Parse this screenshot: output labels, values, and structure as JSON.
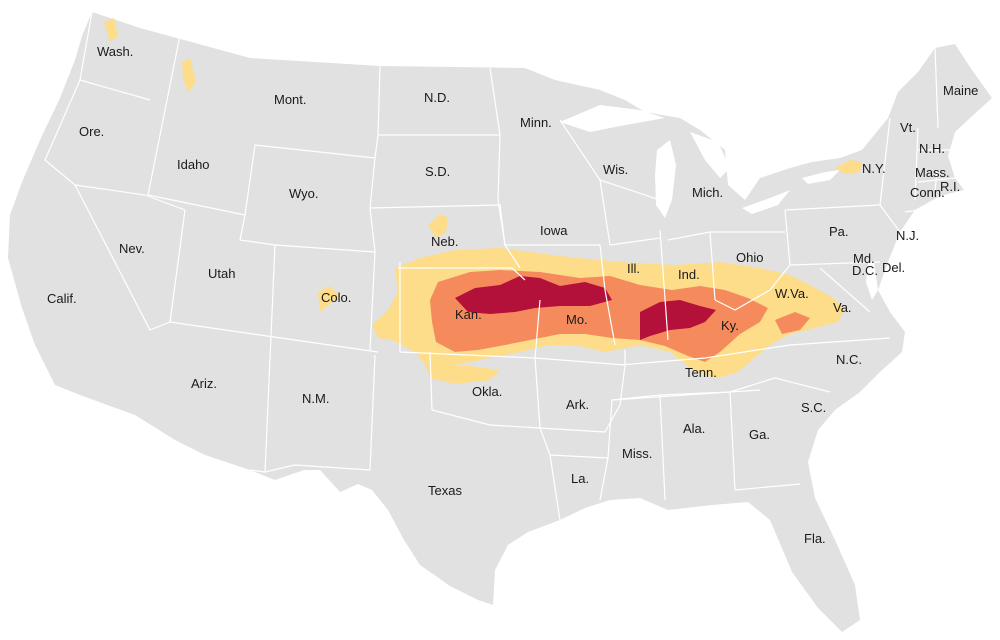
{
  "colors": {
    "land": "#e1e1e1",
    "borders": "#ffffff",
    "level_1": "#fddd8a",
    "level_2": "#f58b5c",
    "level_3": "#b3103a"
  },
  "labels": {
    "wa": "Wash.",
    "or": "Ore.",
    "ca": "Calif.",
    "id": "Idaho",
    "nv": "Nev.",
    "mt": "Mont.",
    "wy": "Wyo.",
    "ut": "Utah",
    "az": "Ariz.",
    "co": "Colo.",
    "nm": "N.M.",
    "nd": "N.D.",
    "sd": "S.D.",
    "ne": "Neb.",
    "ks": "Kan.",
    "ok": "Okla.",
    "tx": "Texas",
    "mn": "Minn.",
    "ia": "Iowa",
    "mo": "Mo.",
    "ar": "Ark.",
    "la": "La.",
    "wi": "Wis.",
    "il": "Ill.",
    "mi": "Mich.",
    "in": "Ind.",
    "oh": "Ohio",
    "ky": "Ky.",
    "tn": "Tenn.",
    "ms": "Miss.",
    "al": "Ala.",
    "ga": "Ga.",
    "fl": "Fla.",
    "sc": "S.C.",
    "nc": "N.C.",
    "va": "Va.",
    "wv": "W.Va.",
    "pa": "Pa.",
    "ny": "N.Y.",
    "nj": "N.J.",
    "md": "Md.",
    "de": "Del.",
    "dc": "D.C.",
    "vt": "Vt.",
    "nh": "N.H.",
    "ma": "Mass.",
    "ct": "Conn.",
    "ri": "R.I.",
    "me": "Maine"
  }
}
